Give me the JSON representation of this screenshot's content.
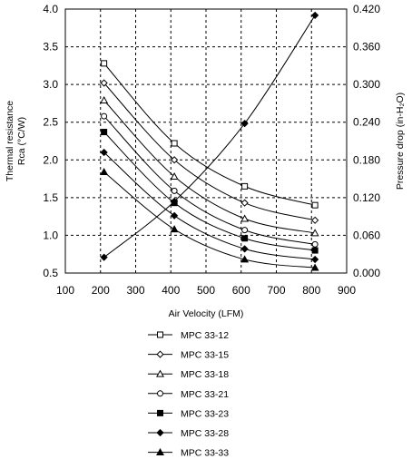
{
  "chart_data": {
    "type": "line",
    "xlabel": "Air Velocity (LFM)",
    "ylabel_left_line1": "Thermal resistance",
    "ylabel_left_line2": "Rca (°C/W)",
    "ylabel_right": "Pressure drop  (in-H₂O)",
    "xlim": [
      100,
      900
    ],
    "ylim_left": [
      0.5,
      4.0
    ],
    "ylim_right": [
      0.0,
      0.42
    ],
    "x_ticks": [
      "100",
      "200",
      "300",
      "400",
      "500",
      "600",
      "700",
      "800",
      "900"
    ],
    "y_left_ticks": [
      "0.5",
      "1.0",
      "1.5",
      "2.0",
      "2.5",
      "3.0",
      "3.5",
      "4.0"
    ],
    "y_right_ticks": [
      "0.000",
      "0.060",
      "0.120",
      "0.180",
      "0.240",
      "0.300",
      "0.360",
      "0.420"
    ],
    "grid": true,
    "legend_position": "bottom",
    "series": [
      {
        "name": "MPC 33-12",
        "marker": "square-open",
        "x": [
          210,
          410,
          610,
          810
        ],
        "y": [
          3.28,
          2.22,
          1.65,
          1.4
        ]
      },
      {
        "name": "MPC 33-15",
        "marker": "diamond-open",
        "x": [
          210,
          410,
          610,
          810
        ],
        "y": [
          3.02,
          2.0,
          1.43,
          1.2
        ]
      },
      {
        "name": "MPC 33-18",
        "marker": "triangle-open",
        "x": [
          210,
          410,
          610,
          810
        ],
        "y": [
          2.79,
          1.78,
          1.22,
          1.03
        ]
      },
      {
        "name": "MPC 33-21",
        "marker": "circle-open",
        "x": [
          210,
          410,
          610,
          810
        ],
        "y": [
          2.58,
          1.59,
          1.07,
          0.88
        ]
      },
      {
        "name": "MPC 33-23",
        "marker": "square-filled",
        "x": [
          210,
          410,
          610,
          810
        ],
        "y": [
          2.37,
          1.43,
          0.96,
          0.8
        ]
      },
      {
        "name": "MPC 33-28",
        "marker": "diamond-filled",
        "x": [
          210,
          410,
          610,
          810
        ],
        "y": [
          2.1,
          1.26,
          0.82,
          0.68
        ]
      },
      {
        "name": "MPC 33-33",
        "marker": "triangle-filled",
        "x": [
          210,
          410,
          610,
          810
        ],
        "y": [
          1.84,
          1.08,
          0.68,
          0.57
        ]
      }
    ],
    "pressure_series": {
      "axis": "right",
      "marker": "diamond-filled",
      "x": [
        210,
        410,
        610,
        810
      ],
      "y": [
        0.025,
        0.114,
        0.238,
        0.41
      ]
    }
  }
}
